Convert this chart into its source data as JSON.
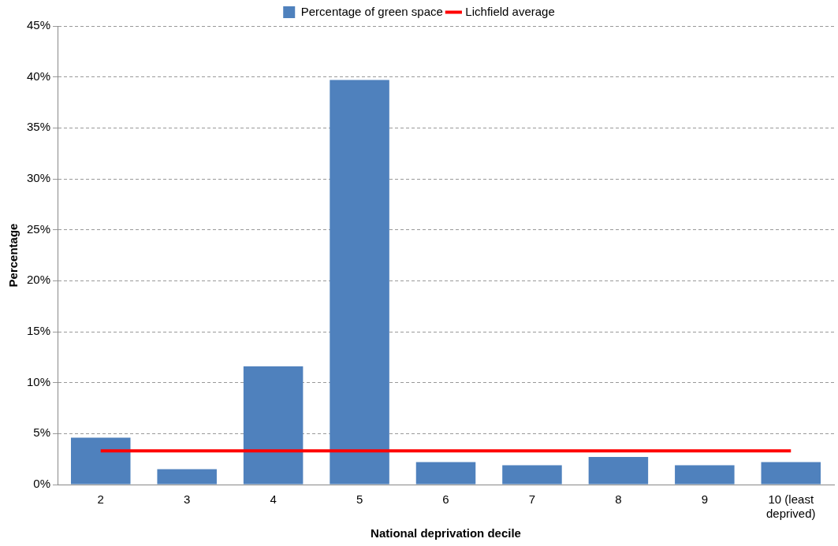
{
  "chart_data": {
    "type": "bar",
    "xlabel": "National deprivation decile",
    "ylabel": "Percentage",
    "categories": [
      "2",
      "3",
      "4",
      "5",
      "6",
      "7",
      "8",
      "9",
      "10 (least deprived)"
    ],
    "series": [
      {
        "name": "Percentage of green space",
        "color": "#4f81bd",
        "values": [
          4.6,
          1.5,
          11.6,
          39.7,
          2.2,
          1.9,
          2.7,
          1.9,
          2.2
        ]
      },
      {
        "name": "Lichfield average",
        "type": "line",
        "color": "#ff0000",
        "values": [
          3.3,
          3.3,
          3.3,
          3.3,
          3.3,
          3.3,
          3.3,
          3.3,
          3.3
        ]
      }
    ],
    "ylim": [
      0,
      45
    ],
    "yticks": [
      {
        "value": 0,
        "label": "0%"
      },
      {
        "value": 5,
        "label": "5%"
      },
      {
        "value": 10,
        "label": "10%"
      },
      {
        "value": 15,
        "label": "15%"
      },
      {
        "value": 20,
        "label": "20%"
      },
      {
        "value": 25,
        "label": "25%"
      },
      {
        "value": 30,
        "label": "30%"
      },
      {
        "value": 35,
        "label": "35%"
      },
      {
        "value": 40,
        "label": "40%"
      },
      {
        "value": 45,
        "label": "45%"
      }
    ],
    "grid": "y",
    "legend": "top",
    "marker": "none",
    "line_style": "solid"
  }
}
